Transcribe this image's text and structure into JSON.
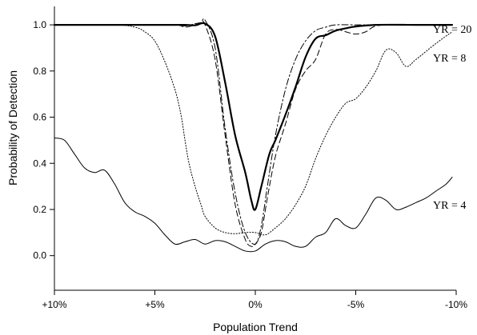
{
  "chart_data": {
    "type": "line",
    "title": "",
    "xlabel": "Population Trend",
    "ylabel": "Probability of Detection",
    "xlim": [
      10,
      -10
    ],
    "ylim": [
      -0.15,
      1.08
    ],
    "x_ticks": [
      10,
      5,
      0,
      -5,
      -10
    ],
    "x_tick_labels": [
      "+10%",
      "+5%",
      "0%",
      "-5%",
      "-10%"
    ],
    "y_ticks": [
      0,
      0.2,
      0.4,
      0.6,
      0.8,
      1.0
    ],
    "y_tick_labels": [
      "0.0",
      "0.2",
      "0.4",
      "0.6",
      "0.8",
      "1.0"
    ],
    "grid": false,
    "annotations": [
      "YR = 20",
      "YR = 8",
      "YR = 4"
    ],
    "series": [
      {
        "name": "YR = 20",
        "style": "solid-bold",
        "x": [
          10,
          8,
          6,
          4,
          3.5,
          3,
          2.5,
          2,
          1.5,
          1,
          0.5,
          0.2,
          0,
          -0.3,
          -0.7,
          -1,
          -1.5,
          -2,
          -2.5,
          -3,
          -3.5,
          -4,
          -4.5,
          -5,
          -6,
          -8,
          -9.8
        ],
        "y": [
          1.0,
          1.0,
          1.0,
          1.0,
          1.0,
          0.998,
          1.005,
          0.95,
          0.75,
          0.52,
          0.36,
          0.24,
          0.2,
          0.3,
          0.44,
          0.5,
          0.61,
          0.73,
          0.86,
          0.94,
          0.955,
          0.975,
          0.985,
          0.993,
          1.0,
          1.0,
          1.0
        ]
      },
      {
        "name": "",
        "style": "dash-dot",
        "x": [
          10,
          8,
          6,
          4,
          3.5,
          3,
          2.7,
          2.5,
          2,
          1.5,
          1,
          0.5,
          0,
          -0.3,
          -0.6,
          -1,
          -1.5,
          -2,
          -2.5,
          -3,
          -3.5,
          -4,
          -5,
          -6,
          -8,
          -9.8
        ],
        "y": [
          1.0,
          1.0,
          1.0,
          1.0,
          0.995,
          1.005,
          1.01,
          1.02,
          0.9,
          0.55,
          0.27,
          0.1,
          0.05,
          0.13,
          0.3,
          0.52,
          0.72,
          0.85,
          0.93,
          0.975,
          0.99,
          1.0,
          1.0,
          1.0,
          1.0,
          1.0
        ]
      },
      {
        "name": "",
        "style": "dashed",
        "x": [
          10,
          8,
          6,
          4,
          3.5,
          3,
          2.7,
          2.5,
          2,
          1.5,
          1,
          0.5,
          0.2,
          0,
          -0.3,
          -0.6,
          -1,
          -1.5,
          -2,
          -2.5,
          -3,
          -3.5,
          -4,
          -4.5,
          -5,
          -5.5,
          -6,
          -7,
          -9.8
        ],
        "y": [
          1.0,
          1.0,
          1.0,
          1.0,
          0.99,
          1.0,
          1.01,
          1.0,
          0.85,
          0.52,
          0.22,
          0.07,
          0.04,
          0.05,
          0.1,
          0.25,
          0.43,
          0.57,
          0.72,
          0.8,
          0.85,
          0.96,
          0.98,
          0.97,
          0.96,
          0.97,
          0.995,
          1.0,
          1.0
        ]
      },
      {
        "name": "YR = 8",
        "style": "dotted",
        "x": [
          10,
          7,
          6,
          5.5,
          5,
          4.5,
          4,
          3.7,
          3.5,
          3.3,
          3,
          2.7,
          2.5,
          2,
          1.5,
          1,
          0.5,
          0,
          -0.5,
          -1,
          -1.5,
          -2,
          -2.5,
          -3,
          -3.5,
          -4,
          -4.5,
          -5,
          -5.5,
          -6,
          -6.5,
          -7,
          -7.5,
          -8,
          -9,
          -9.8
        ],
        "y": [
          1.0,
          1.0,
          0.99,
          0.97,
          0.93,
          0.84,
          0.72,
          0.61,
          0.5,
          0.4,
          0.3,
          0.22,
          0.17,
          0.12,
          0.1,
          0.095,
          0.1,
          0.1,
          0.09,
          0.12,
          0.16,
          0.22,
          0.3,
          0.42,
          0.52,
          0.6,
          0.66,
          0.68,
          0.73,
          0.8,
          0.89,
          0.88,
          0.82,
          0.85,
          0.92,
          0.97
        ]
      },
      {
        "name": "YR = 4",
        "style": "solid-thin",
        "x": [
          10,
          9.5,
          9,
          8.5,
          8,
          7.5,
          7,
          6.5,
          6,
          5.5,
          5,
          4.5,
          4,
          3.5,
          3,
          2.5,
          2,
          1.5,
          1,
          0.5,
          0,
          -0.5,
          -1,
          -1.5,
          -2,
          -2.5,
          -3,
          -3.5,
          -4,
          -4.5,
          -5,
          -5.5,
          -6,
          -6.5,
          -7,
          -7.5,
          -8,
          -8.5,
          -9,
          -9.5,
          -9.8
        ],
        "y": [
          0.51,
          0.5,
          0.44,
          0.38,
          0.36,
          0.37,
          0.31,
          0.23,
          0.19,
          0.17,
          0.14,
          0.09,
          0.05,
          0.06,
          0.07,
          0.05,
          0.065,
          0.06,
          0.04,
          0.02,
          0.02,
          0.05,
          0.065,
          0.06,
          0.04,
          0.04,
          0.08,
          0.1,
          0.16,
          0.13,
          0.12,
          0.18,
          0.25,
          0.24,
          0.2,
          0.21,
          0.23,
          0.25,
          0.28,
          0.31,
          0.34
        ]
      }
    ]
  }
}
